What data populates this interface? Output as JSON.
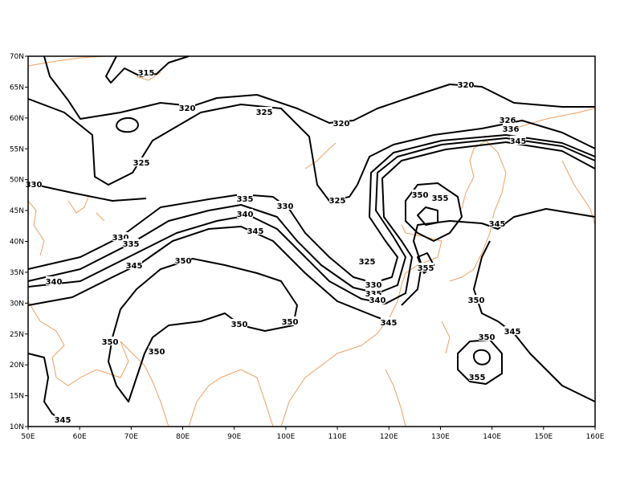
{
  "map": {
    "lon_range": [
      "50E",
      "160E"
    ],
    "lat_range": [
      "10N",
      "70N"
    ],
    "x_ticks": [
      "50E",
      "60E",
      "70E",
      "80E",
      "90E",
      "100E",
      "110E",
      "120E",
      "130E",
      "140E",
      "150E",
      "160E"
    ],
    "y_ticks": [
      "10N",
      "15N",
      "20N",
      "25N",
      "30N",
      "35N",
      "40N",
      "45N",
      "50N",
      "55N",
      "60N",
      "65N",
      "70N"
    ],
    "contour_color": "#000000",
    "coastline_color": "#f0a060",
    "contour_labels": [
      "315",
      "320",
      "320",
      "320",
      "325",
      "325",
      "325",
      "325",
      "330",
      "330",
      "330",
      "330",
      "335",
      "335",
      "335",
      "340",
      "340",
      "340",
      "345",
      "345",
      "345",
      "345",
      "345",
      "345",
      "345",
      "350",
      "350",
      "350",
      "350",
      "350",
      "350",
      "350",
      "350",
      "355",
      "355",
      "355",
      "326",
      "336"
    ]
  }
}
